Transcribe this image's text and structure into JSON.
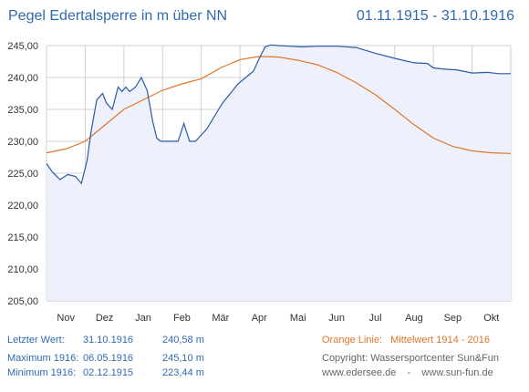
{
  "header": {
    "title": "Pegel Edertalsperre in m über NN",
    "range": "01.11.1915 - 31.10.1916"
  },
  "stats": {
    "last": {
      "label": "Letzter Wert:",
      "date": "31.10.1916",
      "value": "240,58 m"
    },
    "max": {
      "label": "Maximum 1916:",
      "date": "06.05.1916",
      "value": "245,10 m"
    },
    "min": {
      "label": "Minimum  1916:",
      "date": "02.12.1915",
      "value": "223,44 m"
    }
  },
  "legend": {
    "orange_label": "Orange Linie:",
    "orange_desc": "Mittelwert   1914 - 2016"
  },
  "credits": {
    "copyright": "Copyright: Wassersportcenter Sun&Fun",
    "sites": "www.edersee.de    -    www.sun-fun.de"
  },
  "colors": {
    "level_line": "#2a5aa8",
    "level_fill": "#eef0fb",
    "mean_line": "#e0762a",
    "grid": "#d0d0d0",
    "text_blue": "#2f6ab0",
    "text_orange": "#e0762a",
    "text_gray": "#666666"
  },
  "chart_data": {
    "type": "line",
    "title": "Pegel Edertalsperre in m über NN",
    "x_type": "month",
    "x_ticks": [
      "Nov",
      "Dez",
      "Jan",
      "Feb",
      "Mär",
      "Apr",
      "Mai",
      "Jun",
      "Jul",
      "Aug",
      "Sep",
      "Okt"
    ],
    "x_range": [
      0,
      12
    ],
    "ylim": [
      205,
      245
    ],
    "y_ticks": [
      "205,00",
      "210,00",
      "215,00",
      "220,00",
      "225,00",
      "230,00",
      "235,00",
      "240,00",
      "245,00"
    ],
    "y_tick_values": [
      205,
      210,
      215,
      220,
      225,
      230,
      235,
      240,
      245
    ],
    "grid": true,
    "series": [
      {
        "key": "level",
        "x": [
          0,
          0.15,
          0.35,
          0.55,
          0.75,
          0.9,
          1.05,
          1.15,
          1.3,
          1.45,
          1.55,
          1.7,
          1.85,
          1.95,
          2.05,
          2.15,
          2.3,
          2.45,
          2.6,
          2.75,
          2.85,
          2.95,
          3.05,
          3.15,
          3.25,
          3.4,
          3.55,
          3.7,
          3.85,
          4.0,
          4.15,
          4.35,
          4.55,
          4.75,
          4.95,
          5.15,
          5.35,
          5.5,
          5.65,
          5.8,
          6.0,
          6.3,
          6.6,
          7.0,
          7.5,
          8.0,
          8.5,
          9.0,
          9.5,
          9.85,
          10.0,
          10.3,
          10.6,
          11.0,
          11.4,
          11.7,
          12.0
        ],
        "values": [
          226.5,
          225.2,
          224.0,
          224.8,
          224.5,
          223.4,
          227.0,
          231.5,
          236.5,
          237.5,
          236.0,
          235.0,
          238.5,
          237.8,
          238.5,
          237.8,
          238.5,
          240.0,
          238.0,
          233.0,
          230.5,
          230.0,
          230.0,
          230.0,
          230.0,
          230.0,
          232.8,
          230.0,
          230.0,
          231.0,
          232.0,
          234.0,
          236.0,
          237.5,
          239.0,
          240.0,
          241.0,
          243.0,
          244.8,
          245.1,
          245.0,
          244.9,
          244.8,
          244.9,
          244.9,
          244.7,
          243.8,
          243.0,
          242.3,
          242.2,
          241.5,
          241.3,
          241.2,
          240.7,
          240.8,
          240.6,
          240.6
        ]
      },
      {
        "key": "mean",
        "x": [
          0,
          0.5,
          1.0,
          1.5,
          2.0,
          2.5,
          3.0,
          3.5,
          4.0,
          4.5,
          5.0,
          5.5,
          6.0,
          6.5,
          7.0,
          7.5,
          8.0,
          8.5,
          9.0,
          9.5,
          10.0,
          10.5,
          11.0,
          11.5,
          12.0
        ],
        "values": [
          228.2,
          228.8,
          230.0,
          232.5,
          235.0,
          236.5,
          238.0,
          239.0,
          239.8,
          241.5,
          242.8,
          243.3,
          243.2,
          242.7,
          242.0,
          240.8,
          239.2,
          237.3,
          235.0,
          232.6,
          230.5,
          229.2,
          228.5,
          228.2,
          228.1
        ]
      }
    ]
  }
}
